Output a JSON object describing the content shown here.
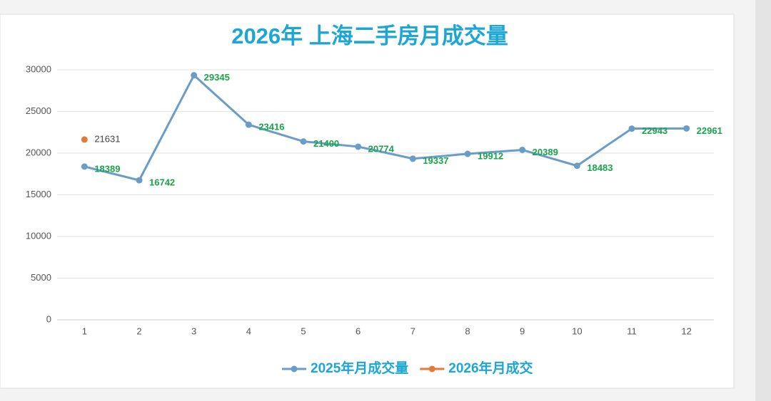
{
  "chart_data": {
    "type": "line",
    "title": "2026年 上海二手房月成交量",
    "categories": [
      "1",
      "2",
      "3",
      "4",
      "5",
      "6",
      "7",
      "8",
      "9",
      "10",
      "11",
      "12"
    ],
    "series": [
      {
        "name": "2025年月成交量",
        "color": "#6a9cc8",
        "label_color": "#1aa34a",
        "values": [
          18389,
          16742,
          29345,
          23416,
          21400,
          20774,
          19337,
          19912,
          20389,
          18483,
          22943,
          22961
        ]
      },
      {
        "name": "2026年月成交",
        "color": "#e07b39",
        "label_color": "#444444",
        "values": [
          21631,
          null,
          null,
          null,
          null,
          null,
          null,
          null,
          null,
          null,
          null,
          null
        ]
      }
    ],
    "ylim": [
      0,
      30000
    ],
    "yticks": [
      0,
      5000,
      10000,
      15000,
      20000,
      25000,
      30000
    ],
    "grid": true,
    "legend": "bottom"
  }
}
